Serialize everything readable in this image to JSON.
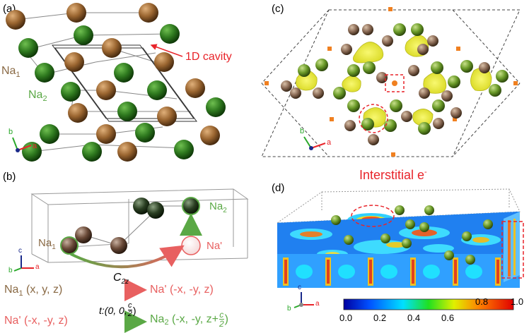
{
  "panels": {
    "a": {
      "label": "(a)",
      "na1_label": "Na",
      "na1_sub": "1",
      "na2_label": "Na",
      "na2_sub": "2",
      "cavity_label": "1D cavity",
      "axes": {
        "a": "a",
        "b": "b"
      }
    },
    "b": {
      "label": "(b)",
      "na1_label": "Na",
      "na1_sub": "1",
      "na2_label": "Na",
      "na2_sub": "2",
      "naprime_label": "Na'",
      "axes": {
        "a": "a",
        "b": "b",
        "c": "c"
      },
      "eq1": {
        "left": "Na",
        "left_sub": "1",
        "left_coords": " (x, y, z)",
        "op": "C",
        "op_sub": "2z",
        "right": "Na' (-x, -y, z)"
      },
      "eq2": {
        "left": "Na' (-x, -y, z)",
        "op_prefix": "t:(0, 0, ",
        "op_frac_num": "c",
        "op_frac_den": "2",
        "op_suffix": ")",
        "right": "Na",
        "right_sub": "2",
        "right_coords_prefix": " (-x, -y, z+",
        "right_frac_num": "c",
        "right_frac_den": "2",
        "right_coords_suffix": ")"
      }
    },
    "c": {
      "label": "(c)",
      "axes": {
        "a": "a",
        "b": "b"
      }
    },
    "d": {
      "label": "(d)",
      "title": "Interstitial e",
      "title_sup": "-",
      "axes": {
        "a": "a",
        "b": "b",
        "c": "c"
      },
      "colorbar_ticks": [
        "0.0",
        "0.2",
        "0.4",
        "0.6",
        "0.8",
        "1.0"
      ]
    }
  },
  "colors": {
    "na1": "#8a5a2b",
    "na2": "#2e6b1e",
    "red": "#e8242a",
    "green_text": "#5aa845",
    "brown_text": "#8a6a45"
  }
}
